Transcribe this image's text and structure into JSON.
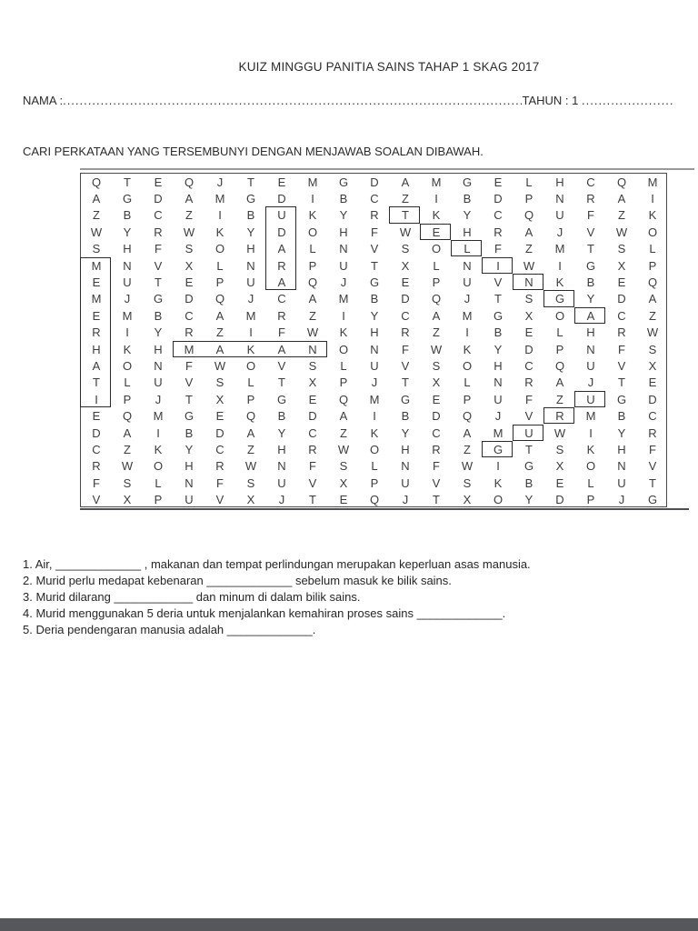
{
  "header": {
    "title": "KUIZ MINGGU PANITIA SAINS TAHAP 1 SKAG 2017",
    "nama_label": "NAMA :",
    "nama_dots": "..............................................................................................................................................................",
    "tahun_label": "TAHUN : 1",
    "tahun_dots": "......................",
    "instruction": "CARI PERKATAAN YANG TERSEMBUNYI DENGAN MENJAWAB SOALAN DIBAWAH."
  },
  "grid": {
    "rows": [
      "QTEQJTEMGDAMGELHCQM",
      "AGDAMGDIBCZIBDPNRAI",
      "ZBCZIBUKYRTKYCQUFZK",
      "WYRWKYDOHFWEHRAJVWO",
      "SHFSOHALNVSOLFZMTSL",
      "MNVXLNRPUTXLNIWIGXP",
      "EUTEPUAQJGEPUVNKBEQ",
      "MJGDQJCAMBDQJTSGYDA",
      "EMBCAMRZIYCAMGXOACZ",
      "RIYRZIFWKHRZIBELHRW",
      "HKHMAKANONFWKYDPNFS",
      "AONFWOVSLUVSOHCQUVX",
      "TLUVSLTXPJTXLNRAJTE",
      "IPJTXPGEQMGEPUFZUGD",
      "EQMGEQBDAIBDQJVRMBC",
      "DAIBDAYCZKYCAMUWIYR",
      "CZKYCZHRWOHRZGTSKHF",
      "RWOHRWNFSLNFWIGXONV",
      "FSLNFSUVXPUVSKBELUT",
      "VXPUVXJTEQJTXOYDPJG"
    ],
    "found_words": [
      {
        "word": "UDARA",
        "cells": [
          [
            3,
            7
          ],
          [
            4,
            7
          ],
          [
            5,
            7
          ],
          [
            6,
            7
          ],
          [
            7,
            7
          ]
        ]
      },
      {
        "word": "TELINGA",
        "cells": [
          [
            3,
            11
          ],
          [
            4,
            12
          ],
          [
            5,
            13
          ],
          [
            6,
            14
          ],
          [
            7,
            15
          ],
          [
            8,
            16
          ],
          [
            9,
            17
          ]
        ]
      },
      {
        "word": "MEMERHATI",
        "cells": [
          [
            6,
            1
          ],
          [
            7,
            1
          ],
          [
            8,
            1
          ],
          [
            9,
            1
          ],
          [
            10,
            1
          ],
          [
            11,
            1
          ],
          [
            12,
            1
          ],
          [
            13,
            1
          ],
          [
            14,
            1
          ]
        ]
      },
      {
        "word": "MAKAN",
        "cells": [
          [
            11,
            4
          ],
          [
            11,
            5
          ],
          [
            11,
            6
          ],
          [
            11,
            7
          ],
          [
            11,
            8
          ]
        ]
      },
      {
        "word": "GURU",
        "cells": [
          [
            17,
            14
          ],
          [
            16,
            15
          ],
          [
            15,
            16
          ],
          [
            14,
            17
          ]
        ]
      }
    ]
  },
  "questions": [
    "1. Air, _____________ , makanan  dan tempat perlindungan merupakan keperluan asas manusia.",
    "2. Murid perlu medapat kebenaran _____________ sebelum masuk ke bilik sains.",
    "3. Murid dilarang ____________ dan minum di dalam bilik sains.",
    "4. Murid menggunakan 5 deria untuk menjalankan kemahiran proses sains _____________.",
    "5. Deria pendengaran manusia adalah _____________."
  ]
}
